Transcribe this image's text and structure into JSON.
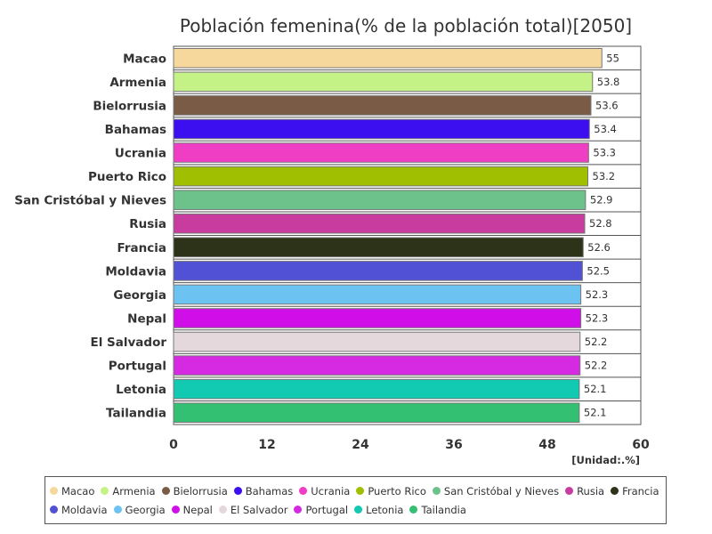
{
  "chart_data": {
    "type": "bar",
    "orientation": "horizontal",
    "title": "Población femenina(% de la población total)[2050]",
    "unit_label": "[Unidad:.%]",
    "categories": [
      "Macao",
      "Armenia",
      "Bielorrusia",
      "Bahamas",
      "Ucrania",
      "Puerto Rico",
      "San Cristóbal y Nieves",
      "Rusia",
      "Francia",
      "Moldavia",
      "Georgia",
      "Nepal",
      "El Salvador",
      "Portugal",
      "Letonia",
      "Tailandia"
    ],
    "values": [
      55,
      53.8,
      53.6,
      53.4,
      53.3,
      53.2,
      52.9,
      52.8,
      52.6,
      52.5,
      52.3,
      52.3,
      52.2,
      52.2,
      52.1,
      52.1
    ],
    "value_labels": [
      "55",
      "53.8",
      "53.6",
      "53.4",
      "53.3",
      "53.2",
      "52.9",
      "52.8",
      "52.6",
      "52.5",
      "52.3",
      "52.3",
      "52.2",
      "52.2",
      "52.1",
      "52.1"
    ],
    "colors": [
      "#f7d89c",
      "#c5f286",
      "#7a5c46",
      "#3b0ff0",
      "#ef3ec4",
      "#9fbf00",
      "#6dc28c",
      "#c73c9e",
      "#2c3319",
      "#5151d6",
      "#6cc3f1",
      "#d00ee8",
      "#e5d8dc",
      "#d52ae2",
      "#12c9b2",
      "#33c072"
    ],
    "xlim": [
      0,
      60
    ],
    "xticks": [
      "0",
      "12",
      "24",
      "36",
      "48",
      "60"
    ],
    "grid": false,
    "legend_position": "bottom"
  }
}
